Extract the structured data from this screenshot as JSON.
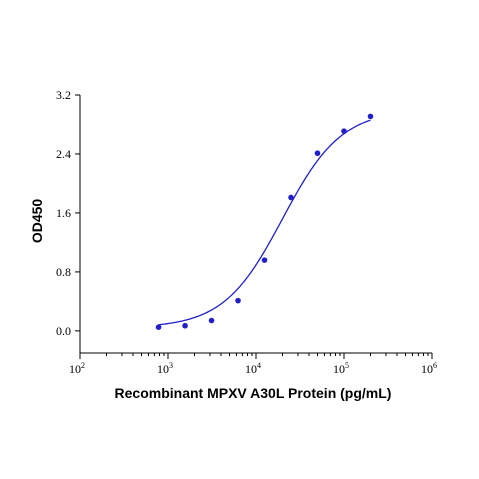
{
  "chart_data": {
    "type": "scatter",
    "title": "",
    "xlabel": "Recombinant MPXV A30L Protein (pg/mL)",
    "ylabel": "OD450",
    "x_scale": "log",
    "xlim": [
      100,
      1000000
    ],
    "ylim": [
      -0.3,
      3.2
    ],
    "y_ticks": [
      "0.0",
      "0.8",
      "1.6",
      "2.4",
      "3.2"
    ],
    "x_ticks": [
      {
        "base": "10",
        "exp": "2"
      },
      {
        "base": "10",
        "exp": "3"
      },
      {
        "base": "10",
        "exp": "4"
      },
      {
        "base": "10",
        "exp": "5"
      },
      {
        "base": "10",
        "exp": "6"
      }
    ],
    "grid": false,
    "legend": "none",
    "fit": "4-parameter logistic curve",
    "color": "#2020c8",
    "series": [
      {
        "x": [
          781,
          1563,
          3125,
          6250,
          12500,
          25000,
          50000,
          100000,
          200000
        ],
        "y": [
          0.05,
          0.07,
          0.14,
          0.41,
          0.96,
          1.81,
          2.41,
          2.71,
          2.91
        ]
      }
    ]
  }
}
